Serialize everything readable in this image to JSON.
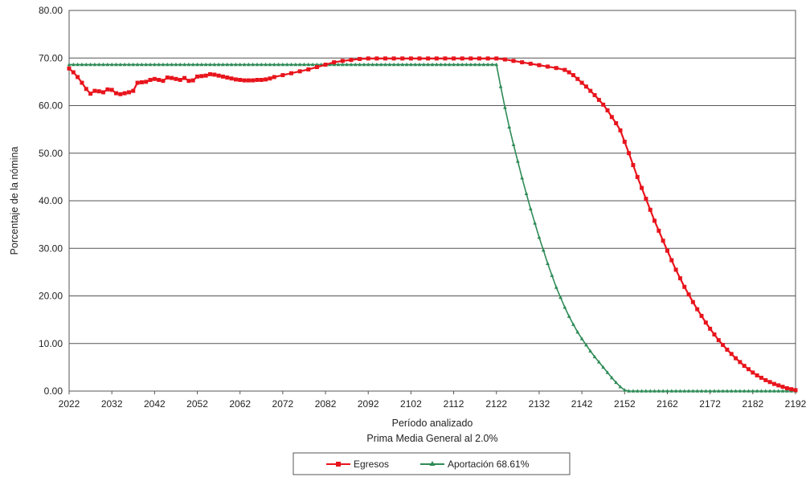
{
  "chart_data": {
    "type": "line",
    "title": "",
    "xlabel": "Período analizado",
    "subtitle": "Prima Media General al 2.0%",
    "ylabel": "Porcentaje de la nómina",
    "xlim": [
      2022,
      2192
    ],
    "ylim": [
      0,
      80
    ],
    "x_ticks": [
      "2022",
      "2032",
      "2042",
      "2052",
      "2062",
      "2072",
      "2082",
      "2092",
      "2102",
      "2112",
      "2122",
      "2132",
      "2142",
      "2152",
      "2162",
      "2172",
      "2182",
      "2192"
    ],
    "y_ticks": [
      "0.00",
      "10.00",
      "20.00",
      "30.00",
      "40.00",
      "50.00",
      "60.00",
      "70.00",
      "80.00"
    ],
    "grid": true,
    "legend_position": "bottom-center",
    "series": [
      {
        "name": "Egresos",
        "color": "#e8141c",
        "marker": "square",
        "x": [
          2022,
          2023,
          2024,
          2025,
          2026,
          2027,
          2028,
          2029,
          2030,
          2031,
          2032,
          2033,
          2034,
          2035,
          2036,
          2037,
          2038,
          2039,
          2040,
          2041,
          2042,
          2043,
          2044,
          2045,
          2046,
          2047,
          2048,
          2049,
          2050,
          2051,
          2052,
          2053,
          2054,
          2055,
          2056,
          2057,
          2058,
          2059,
          2060,
          2061,
          2062,
          2063,
          2064,
          2065,
          2066,
          2067,
          2068,
          2069,
          2070,
          2072,
          2074,
          2076,
          2078,
          2080,
          2082,
          2084,
          2086,
          2088,
          2090,
          2092,
          2094,
          2096,
          2098,
          2100,
          2102,
          2104,
          2106,
          2108,
          2110,
          2112,
          2114,
          2116,
          2118,
          2120,
          2122,
          2124,
          2126,
          2128,
          2130,
          2132,
          2134,
          2136,
          2138,
          2139,
          2140,
          2141,
          2142,
          2143,
          2144,
          2145,
          2146,
          2147,
          2148,
          2149,
          2150,
          2151,
          2152,
          2153,
          2154,
          2155,
          2156,
          2157,
          2158,
          2159,
          2160,
          2161,
          2162,
          2163,
          2164,
          2165,
          2166,
          2167,
          2168,
          2169,
          2170,
          2171,
          2172,
          2173,
          2174,
          2175,
          2176,
          2177,
          2178,
          2179,
          2180,
          2181,
          2182,
          2183,
          2184,
          2185,
          2186,
          2187,
          2188,
          2189,
          2190,
          2191,
          2192
        ],
        "values": [
          67.8,
          67.0,
          66.0,
          64.8,
          63.5,
          62.5,
          63.1,
          63.0,
          62.8,
          63.4,
          63.3,
          62.6,
          62.4,
          62.6,
          62.8,
          63.1,
          64.8,
          64.9,
          65.0,
          65.4,
          65.6,
          65.4,
          65.2,
          65.9,
          65.8,
          65.6,
          65.4,
          65.8,
          65.2,
          65.3,
          66.1,
          66.2,
          66.3,
          66.6,
          66.5,
          66.3,
          66.1,
          65.9,
          65.7,
          65.5,
          65.4,
          65.3,
          65.3,
          65.3,
          65.4,
          65.4,
          65.5,
          65.7,
          66.0,
          66.4,
          66.8,
          67.2,
          67.6,
          68.1,
          68.6,
          69.1,
          69.4,
          69.6,
          69.8,
          69.9,
          69.9,
          69.9,
          69.9,
          69.9,
          69.9,
          69.9,
          69.9,
          69.9,
          69.9,
          69.9,
          69.9,
          69.9,
          69.9,
          69.9,
          69.9,
          69.7,
          69.4,
          69.1,
          68.8,
          68.5,
          68.2,
          67.9,
          67.5,
          67.0,
          66.4,
          65.6,
          64.8,
          64.0,
          63.1,
          62.2,
          61.2,
          60.2,
          59.0,
          57.6,
          56.3,
          54.8,
          52.4,
          50.0,
          47.5,
          45.0,
          42.7,
          40.4,
          38.1,
          35.8,
          33.7,
          31.6,
          29.5,
          27.5,
          25.5,
          23.7,
          21.9,
          20.3,
          18.7,
          17.2,
          15.8,
          14.4,
          13.1,
          11.9,
          10.7,
          9.7,
          8.7,
          7.8,
          6.9,
          6.1,
          5.3,
          4.6,
          3.9,
          3.3,
          2.8,
          2.3,
          1.9,
          1.5,
          1.2,
          0.9,
          0.6,
          0.4,
          0.2
        ]
      },
      {
        "name": "Aportación 68.61%",
        "color": "#2e8b57",
        "marker": "triangle",
        "x": [
          2022,
          2023,
          2024,
          2025,
          2026,
          2027,
          2028,
          2029,
          2030,
          2031,
          2032,
          2033,
          2034,
          2035,
          2036,
          2037,
          2038,
          2039,
          2040,
          2041,
          2042,
          2043,
          2044,
          2045,
          2046,
          2047,
          2048,
          2049,
          2050,
          2051,
          2052,
          2053,
          2054,
          2055,
          2056,
          2057,
          2058,
          2059,
          2060,
          2061,
          2062,
          2063,
          2064,
          2065,
          2066,
          2067,
          2068,
          2069,
          2070,
          2071,
          2072,
          2073,
          2074,
          2075,
          2076,
          2077,
          2078,
          2079,
          2080,
          2081,
          2082,
          2083,
          2084,
          2085,
          2086,
          2087,
          2088,
          2089,
          2090,
          2091,
          2092,
          2093,
          2094,
          2095,
          2096,
          2097,
          2098,
          2099,
          2100,
          2101,
          2102,
          2103,
          2104,
          2105,
          2106,
          2107,
          2108,
          2109,
          2110,
          2111,
          2112,
          2113,
          2114,
          2115,
          2116,
          2117,
          2118,
          2119,
          2120,
          2121,
          2122,
          2123,
          2124,
          2125,
          2126,
          2127,
          2128,
          2129,
          2130,
          2131,
          2132,
          2133,
          2134,
          2135,
          2136,
          2137,
          2138,
          2139,
          2140,
          2141,
          2142,
          2143,
          2144,
          2145,
          2146,
          2147,
          2148,
          2149,
          2150,
          2151,
          2152,
          2153,
          2154,
          2155,
          2156,
          2157,
          2158,
          2159,
          2160,
          2161,
          2162,
          2163,
          2164,
          2165,
          2166,
          2167,
          2168,
          2169,
          2170,
          2171,
          2172,
          2173,
          2174,
          2175,
          2176,
          2177,
          2178,
          2179,
          2180,
          2181,
          2182,
          2183,
          2184,
          2185,
          2186,
          2187,
          2188,
          2189,
          2190,
          2191,
          2192
        ],
        "values": [
          68.61,
          68.61,
          68.61,
          68.61,
          68.61,
          68.61,
          68.61,
          68.61,
          68.61,
          68.61,
          68.61,
          68.61,
          68.61,
          68.61,
          68.61,
          68.61,
          68.61,
          68.61,
          68.61,
          68.61,
          68.61,
          68.61,
          68.61,
          68.61,
          68.61,
          68.61,
          68.61,
          68.61,
          68.61,
          68.61,
          68.61,
          68.61,
          68.61,
          68.61,
          68.61,
          68.61,
          68.61,
          68.61,
          68.61,
          68.61,
          68.61,
          68.61,
          68.61,
          68.61,
          68.61,
          68.61,
          68.61,
          68.61,
          68.61,
          68.61,
          68.61,
          68.61,
          68.61,
          68.61,
          68.61,
          68.61,
          68.61,
          68.61,
          68.61,
          68.61,
          68.61,
          68.61,
          68.61,
          68.61,
          68.61,
          68.61,
          68.61,
          68.61,
          68.61,
          68.61,
          68.61,
          68.61,
          68.61,
          68.61,
          68.61,
          68.61,
          68.61,
          68.61,
          68.61,
          68.61,
          68.61,
          68.61,
          68.61,
          68.61,
          68.61,
          68.61,
          68.61,
          68.61,
          68.61,
          68.61,
          68.61,
          68.61,
          68.61,
          68.61,
          68.61,
          68.61,
          68.61,
          68.61,
          68.61,
          68.61,
          68.61,
          64.0,
          59.6,
          55.5,
          51.8,
          48.3,
          44.8,
          41.5,
          38.3,
          35.3,
          32.3,
          29.6,
          26.8,
          24.3,
          21.8,
          19.7,
          17.6,
          15.7,
          14.0,
          12.4,
          11.0,
          9.7,
          8.4,
          7.2,
          6.1,
          5.0,
          3.9,
          2.8,
          1.8,
          0.9,
          0.2,
          0.0,
          0.0,
          0.0,
          0.0,
          0.0,
          0.0,
          0.0,
          0.0,
          0.0,
          0.0,
          0.0,
          0.0,
          0.0,
          0.0,
          0.0,
          0.0,
          0.0,
          0.0,
          0.0,
          0.0,
          0.0,
          0.0,
          0.0,
          0.0,
          0.0,
          0.0,
          0.0,
          0.0,
          0.0,
          0.0,
          0.0,
          0.0,
          0.0,
          0.0,
          0.0,
          0.0,
          0.0,
          0.0,
          0.0,
          0.0
        ]
      }
    ]
  }
}
